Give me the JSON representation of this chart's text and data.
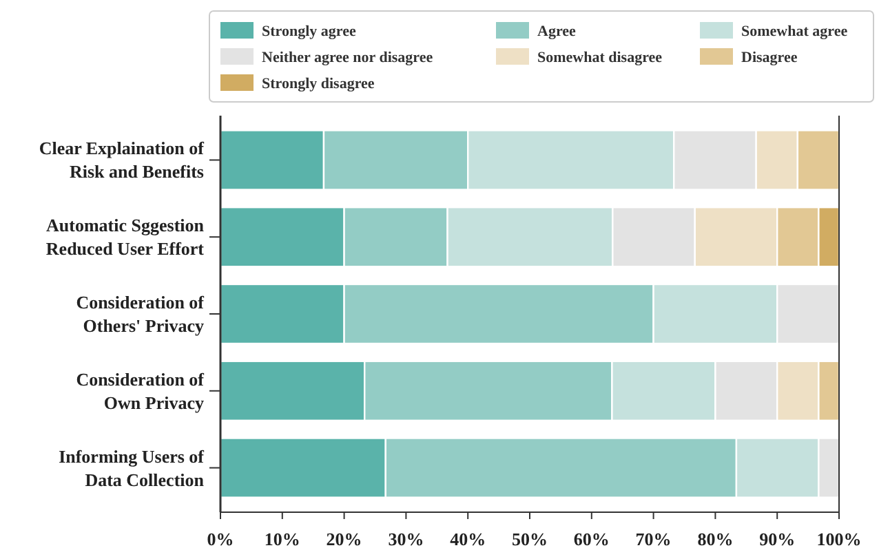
{
  "chart_data": {
    "type": "bar",
    "orientation": "horizontal",
    "stacked": true,
    "categories": [
      "Clear Explaination of\nRisk and Benefits",
      "Automatic Sggestion\nReduced User Effort",
      "Consideration of\nOthers' Privacy",
      "Consideration of\nOwn Privacy",
      "Informing Users of\nData Collection"
    ],
    "series": [
      {
        "name": "Strongly agree",
        "color": "#5ab3aa",
        "values": [
          16.7,
          20,
          20,
          23.3,
          26.7
        ]
      },
      {
        "name": "Agree",
        "color": "#93ccc5",
        "values": [
          23.3,
          16.7,
          50,
          40,
          56.7
        ]
      },
      {
        "name": "Somewhat agree",
        "color": "#c5e1dd",
        "values": [
          33.3,
          26.7,
          20,
          16.7,
          13.3
        ]
      },
      {
        "name": "Neither agree nor disagree",
        "color": "#e3e3e3",
        "values": [
          13.3,
          13.3,
          10,
          10,
          3.3
        ]
      },
      {
        "name": "Somewhat disagree",
        "color": "#eee0c5",
        "values": [
          6.7,
          13.3,
          0,
          6.7,
          0
        ]
      },
      {
        "name": "Disagree",
        "color": "#e2c894",
        "values": [
          6.7,
          6.7,
          0,
          3.3,
          0
        ]
      },
      {
        "name": "Strongly disagree",
        "color": "#d1ac62",
        "values": [
          0,
          3.3,
          0,
          0,
          0
        ]
      }
    ],
    "xlim": [
      0,
      100
    ],
    "xticks": [
      {
        "value": 0,
        "label": "0%"
      },
      {
        "value": 10,
        "label": "10%"
      },
      {
        "value": 20,
        "label": "20%"
      },
      {
        "value": 30,
        "label": "30%"
      },
      {
        "value": 40,
        "label": "40%"
      },
      {
        "value": 50,
        "label": "50%"
      },
      {
        "value": 60,
        "label": "60%"
      },
      {
        "value": 70,
        "label": "70%"
      },
      {
        "value": 80,
        "label": "80%"
      },
      {
        "value": 90,
        "label": "90%"
      },
      {
        "value": 100,
        "label": "100%"
      }
    ],
    "legend": "top"
  }
}
